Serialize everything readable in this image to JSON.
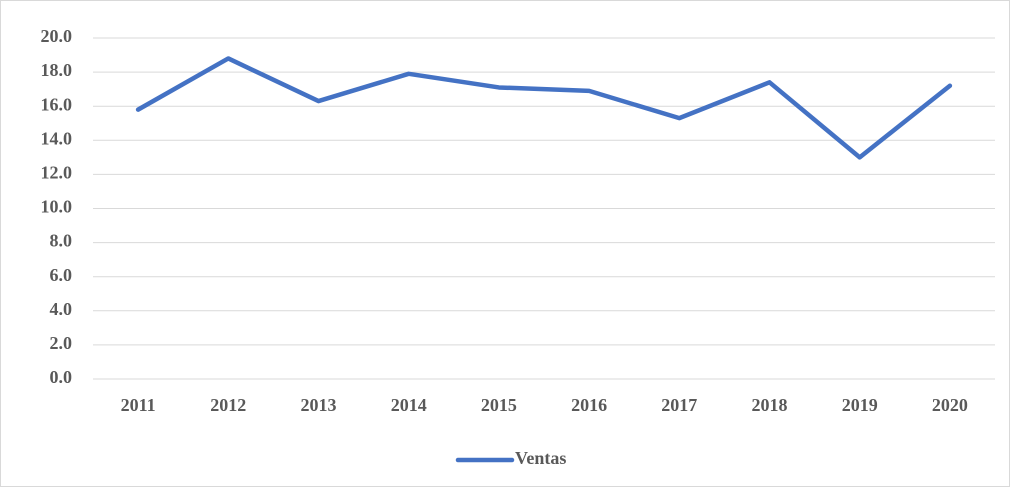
{
  "chart_data": {
    "type": "line",
    "categories": [
      "2011",
      "2012",
      "2013",
      "2014",
      "2015",
      "2016",
      "2017",
      "2018",
      "2019",
      "2020"
    ],
    "series": [
      {
        "name": "Ventas",
        "color": "#4472c4",
        "values": [
          15.8,
          18.8,
          16.3,
          17.9,
          17.1,
          16.9,
          15.3,
          17.4,
          13.0,
          17.2
        ]
      }
    ],
    "ylim": [
      0,
      20
    ],
    "yticks": [
      {
        "value": 0,
        "label": "0.0"
      },
      {
        "value": 2,
        "label": "2.0"
      },
      {
        "value": 4,
        "label": "4.0"
      },
      {
        "value": 6,
        "label": "6.0"
      },
      {
        "value": 8,
        "label": "8.0"
      },
      {
        "value": 10,
        "label": "10.0"
      },
      {
        "value": 12,
        "label": "12.0"
      },
      {
        "value": 14,
        "label": "14.0"
      },
      {
        "value": 16,
        "label": "16.0"
      },
      {
        "value": 18,
        "label": "18.0"
      },
      {
        "value": 20,
        "label": "20.0"
      }
    ],
    "grid": true,
    "legend": "bottom"
  }
}
